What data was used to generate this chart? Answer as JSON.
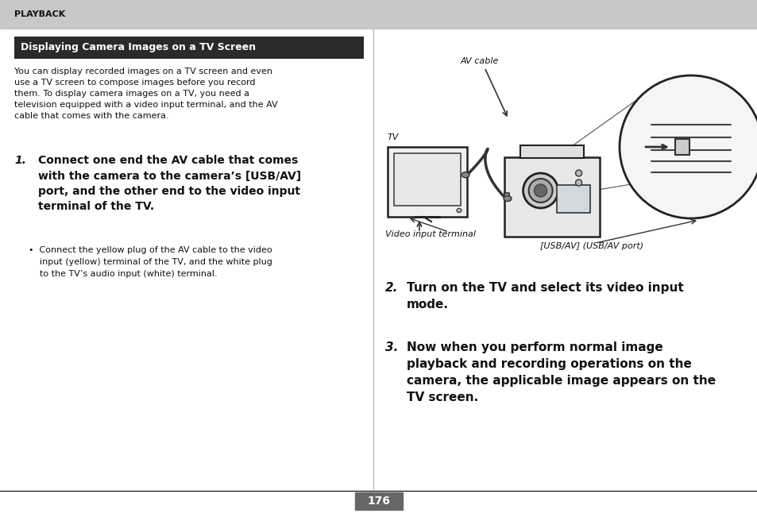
{
  "bg_color": "#ffffff",
  "header_bg": "#c8c8c8",
  "header_text": "PLAYBACK",
  "title_bg": "#2a2a2a",
  "title_text": "Displaying Camera Images on a TV Screen",
  "title_text_color": "#ffffff",
  "divider_color": "#bbbbbb",
  "body_intro": "You can display recorded images on a TV screen and even\nuse a TV screen to compose images before you record\nthem. To display camera images on a TV, you need a\ntelevision equipped with a video input terminal, and the AV\ncable that comes with the camera.",
  "step1_num": "1.",
  "step1_bold": "Connect one end the AV cable that comes\nwith the camera to the camera’s [USB/AV]\nport, and the other end to the video input\nterminal of the TV.",
  "bullet": "•  Connect the yellow plug of the AV cable to the video\n    input (yellow) terminal of the TV, and the white plug\n    to the TV’s audio input (white) terminal.",
  "caption_av": "AV cable",
  "caption_tv": "TV",
  "caption_vi": "Video input terminal",
  "caption_usb": "[USB/AV] (USB/AV port)",
  "step2_num": "2.",
  "step2_text": "Turn on the TV and select its video input\nmode.",
  "step3_num": "3.",
  "step3_text": "Now when you perform normal image\nplayback and recording operations on the\ncamera, the applicable image appears on the\nTV screen.",
  "page_num": "176",
  "page_num_bg": "#666666",
  "page_num_color": "#ffffff",
  "line_color": "#000000"
}
